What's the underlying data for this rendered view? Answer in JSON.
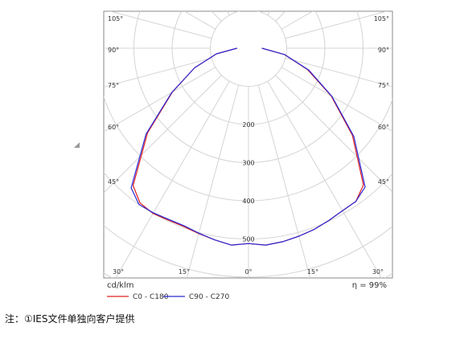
{
  "chart_data": {
    "type": "polar",
    "title": "",
    "radial_unit": "cd/klm",
    "radial_ticks": [
      200,
      300,
      400,
      500
    ],
    "angle_ticks_left": [
      "105°",
      "90°",
      "75°",
      "60°",
      "45°",
      "30°",
      "15°"
    ],
    "angle_ticks_bottom": [
      "30°",
      "15°",
      "0°",
      "15°",
      "30°"
    ],
    "angle_ticks_right": [
      "105°",
      "90°",
      "75°",
      "60°",
      "45°"
    ],
    "efficiency_label": "η = 99%",
    "grid": true,
    "legend_position": "bottom",
    "colors": {
      "c0_c180": "#e02020",
      "c90_c270": "#2a2ad8",
      "grid": "#d4d4d4"
    },
    "series": [
      {
        "name": "C0 - C180",
        "angles_deg": [
          -90,
          -80,
          -70,
          -60,
          -50,
          -40,
          -35,
          -30,
          -25,
          -20,
          -15,
          -10,
          -5,
          0,
          5,
          10,
          15,
          20,
          25,
          30,
          35,
          40,
          50,
          60,
          70,
          80,
          90
        ],
        "values": [
          30,
          85,
          150,
          230,
          345,
          470,
          495,
          500,
          497,
          497,
          503,
          510,
          518,
          512,
          518,
          515,
          510,
          505,
          498,
          492,
          490,
          468,
          355,
          250,
          165,
          95,
          35
        ]
      },
      {
        "name": "C90 - C270",
        "angles_deg": [
          -90,
          -80,
          -70,
          -60,
          -50,
          -40,
          -35,
          -30,
          -25,
          -20,
          -15,
          -10,
          -5,
          0,
          5,
          10,
          15,
          20,
          25,
          30,
          35,
          40,
          50,
          60,
          70,
          80,
          90
        ],
        "values": [
          30,
          85,
          150,
          232,
          350,
          478,
          500,
          498,
          495,
          495,
          502,
          510,
          518,
          512,
          518,
          515,
          510,
          505,
          498,
          492,
          490,
          475,
          360,
          252,
          168,
          96,
          35
        ]
      }
    ]
  },
  "note": "注：①IES文件单独向客户提供"
}
